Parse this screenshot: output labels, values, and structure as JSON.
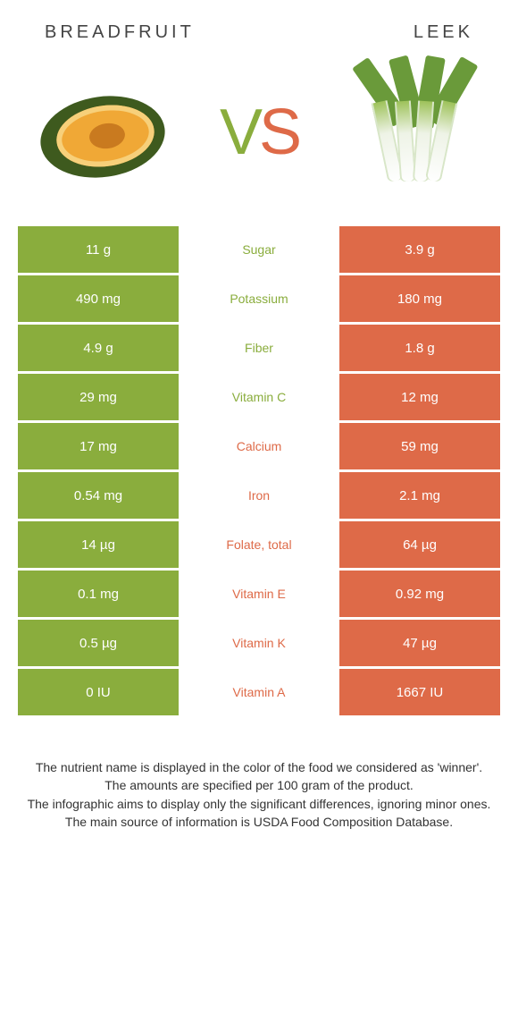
{
  "header": {
    "left": "BREADFRUIT",
    "right": "LEEK"
  },
  "vs": {
    "v": "V",
    "s": "S"
  },
  "colors": {
    "left": "#8aad3d",
    "right": "#de6a48",
    "bg": "#ffffff"
  },
  "rows": [
    {
      "left": "11 g",
      "label": "Sugar",
      "right": "3.9 g",
      "winner": "left"
    },
    {
      "left": "490 mg",
      "label": "Potassium",
      "right": "180 mg",
      "winner": "left"
    },
    {
      "left": "4.9 g",
      "label": "Fiber",
      "right": "1.8 g",
      "winner": "left"
    },
    {
      "left": "29 mg",
      "label": "Vitamin C",
      "right": "12 mg",
      "winner": "left"
    },
    {
      "left": "17 mg",
      "label": "Calcium",
      "right": "59 mg",
      "winner": "right"
    },
    {
      "left": "0.54 mg",
      "label": "Iron",
      "right": "2.1 mg",
      "winner": "right"
    },
    {
      "left": "14 µg",
      "label": "Folate, total",
      "right": "64 µg",
      "winner": "right"
    },
    {
      "left": "0.1 mg",
      "label": "Vitamin E",
      "right": "0.92 mg",
      "winner": "right"
    },
    {
      "left": "0.5 µg",
      "label": "Vitamin K",
      "right": "47 µg",
      "winner": "right"
    },
    {
      "left": "0 IU",
      "label": "Vitamin A",
      "right": "1667 IU",
      "winner": "right"
    }
  ],
  "footer": {
    "l1": "The nutrient name is displayed in the color of the food we considered as 'winner'.",
    "l2": "The amounts are specified per 100 gram of the product.",
    "l3": "The infographic aims to display only the significant differences, ignoring minor ones.",
    "l4": "The main source of information is USDA Food Composition Database."
  }
}
